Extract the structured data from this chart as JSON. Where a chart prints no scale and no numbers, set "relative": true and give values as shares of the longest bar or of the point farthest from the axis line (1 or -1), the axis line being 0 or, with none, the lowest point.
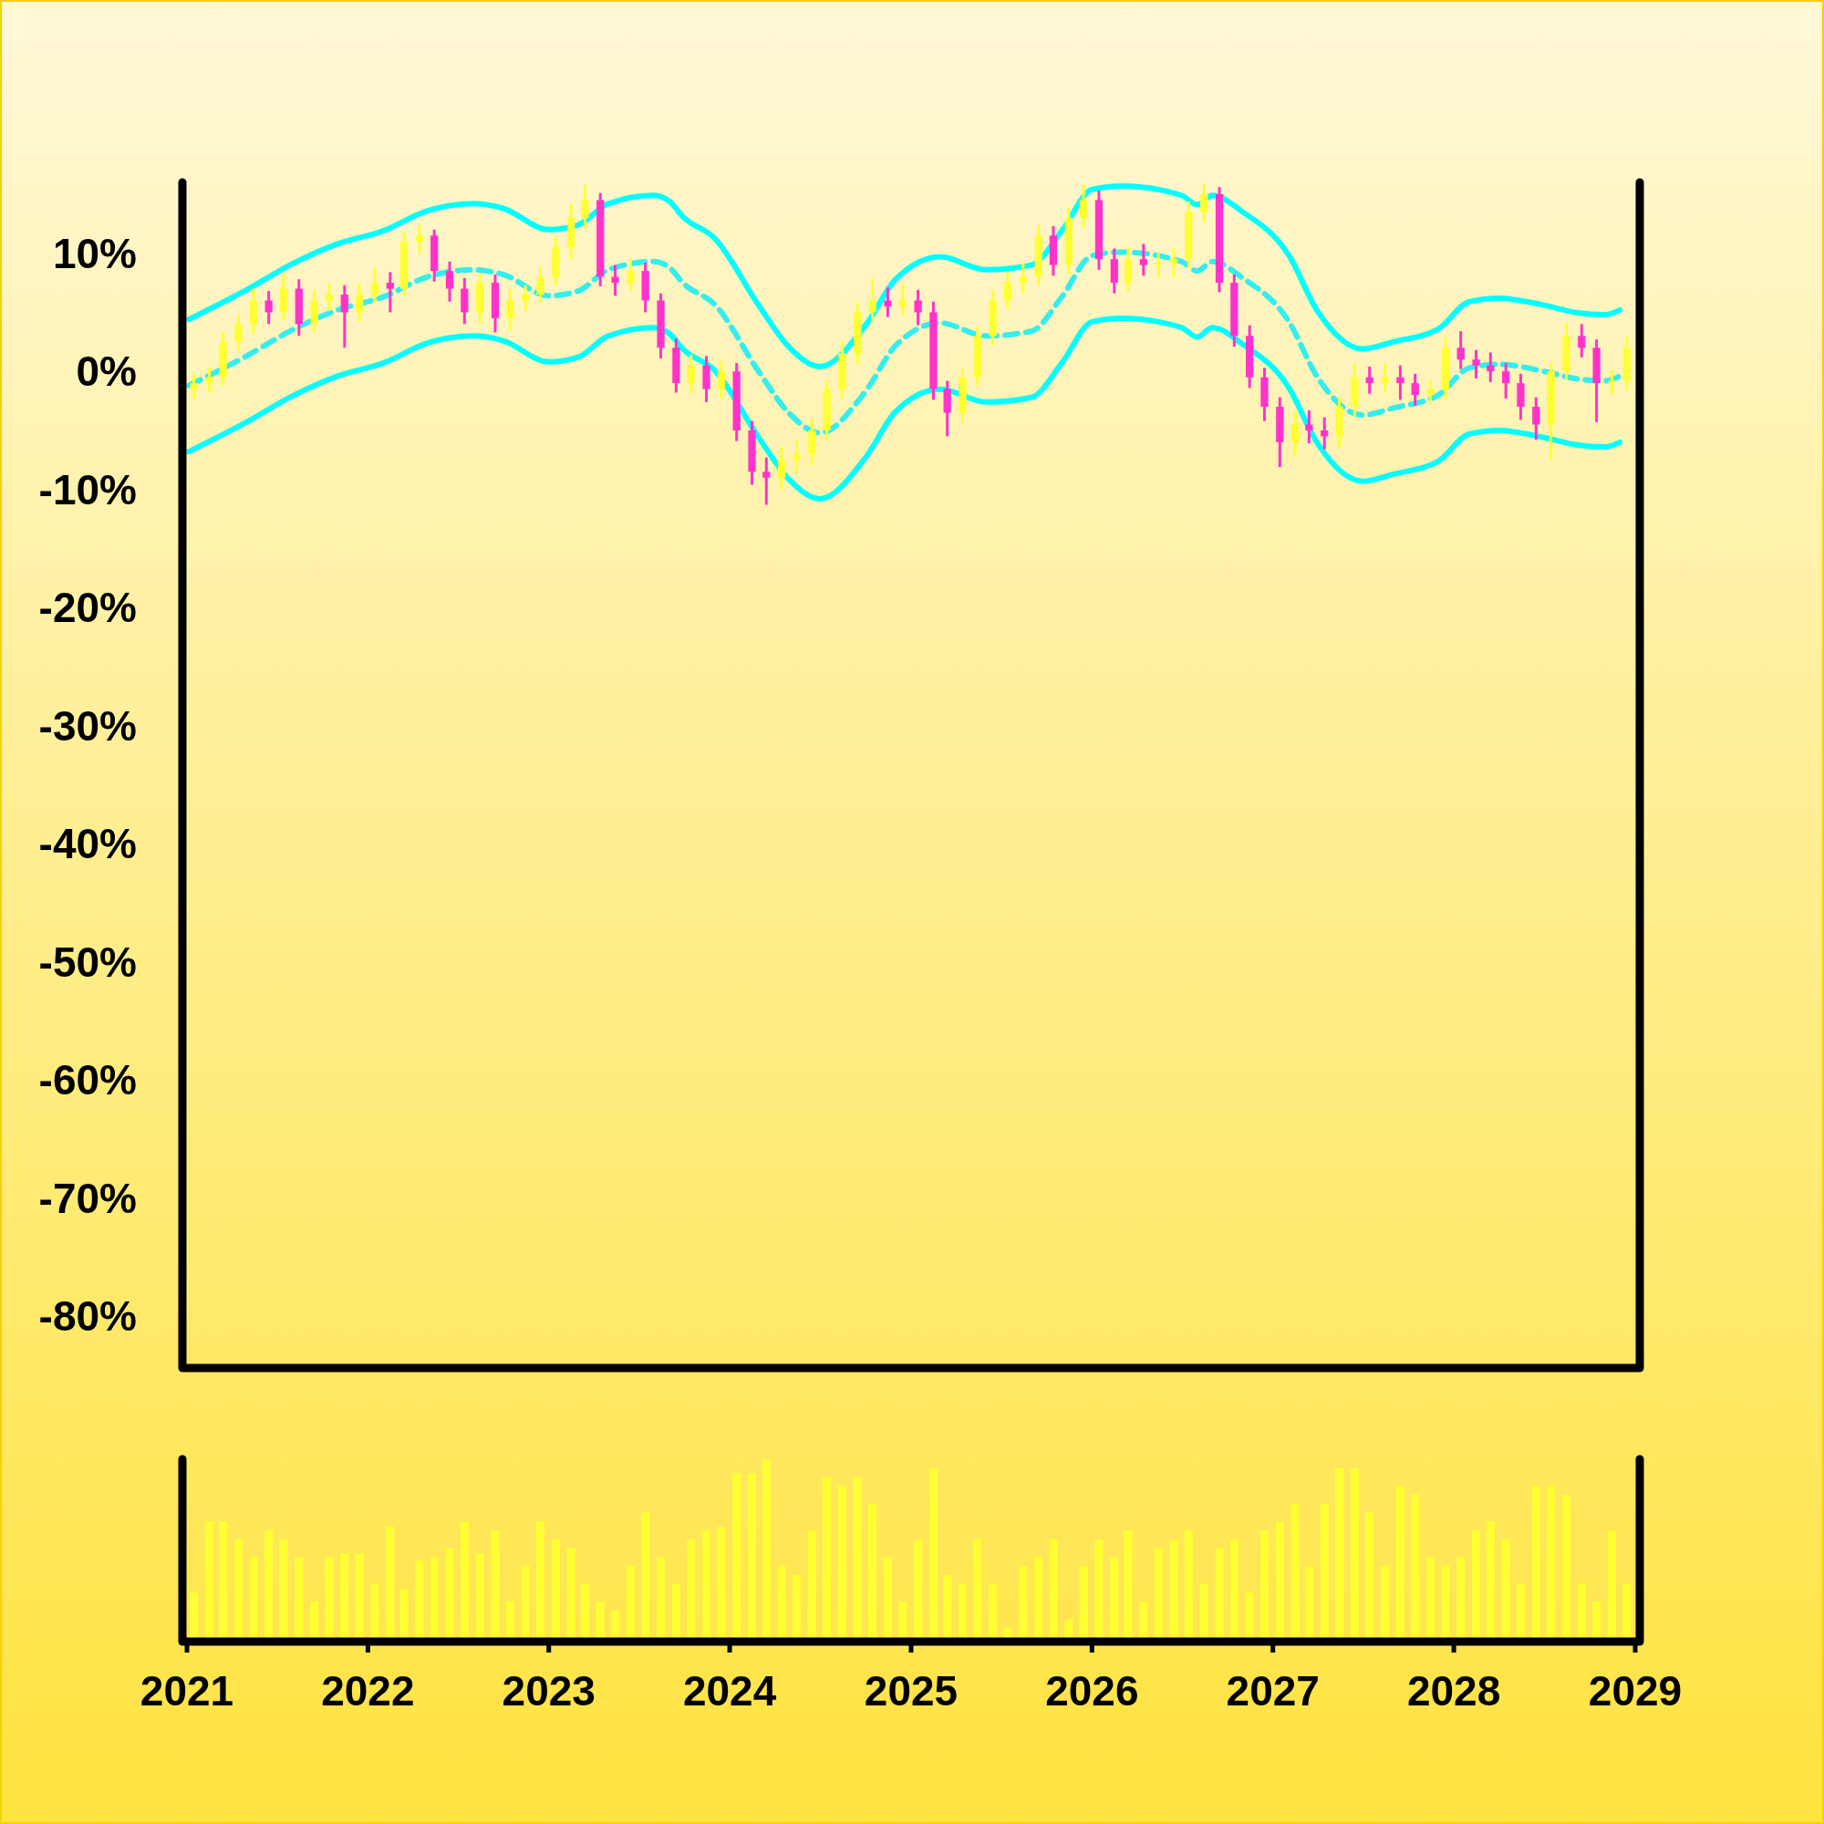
{
  "chart_data": [
    {
      "type": "candlestick",
      "xlim": [
        "2021",
        "2029"
      ],
      "ylim": [
        -84,
        16
      ],
      "tick_labels": "y",
      "yticks": [
        {
          "value": 10,
          "label": "10%"
        },
        {
          "value": 0,
          "label": "0%"
        },
        {
          "value": -10,
          "label": "-10%"
        },
        {
          "value": -20,
          "label": "-20%"
        },
        {
          "value": -30,
          "label": "-30%"
        },
        {
          "value": -40,
          "label": "-40%"
        },
        {
          "value": -50,
          "label": "-50%"
        },
        {
          "value": -60,
          "label": "-60%"
        },
        {
          "value": -70,
          "label": "-70%"
        },
        {
          "value": -80,
          "label": "-80%"
        }
      ],
      "x": [
        "2021-01-15",
        "2021-02-15",
        "2021-03-15",
        "2021-04-15",
        "2021-05-15",
        "2021-06-15",
        "2021-07-15",
        "2021-08-15",
        "2021-09-15",
        "2021-10-15",
        "2021-11-15",
        "2021-12-15",
        "2022-01-15",
        "2022-02-15",
        "2022-03-15",
        "2022-04-15",
        "2022-05-15",
        "2022-06-15",
        "2022-07-15",
        "2022-08-15",
        "2022-09-15",
        "2022-10-15",
        "2022-11-15",
        "2022-12-15",
        "2023-01-15",
        "2023-02-15",
        "2023-03-15",
        "2023-04-15",
        "2023-05-15",
        "2023-06-15",
        "2023-07-15",
        "2023-08-15",
        "2023-09-15",
        "2023-10-15",
        "2023-11-15",
        "2023-12-15",
        "2024-01-15",
        "2024-02-15",
        "2024-03-15",
        "2024-04-15",
        "2024-05-15",
        "2024-06-15",
        "2024-07-15",
        "2024-08-15",
        "2024-09-15",
        "2024-10-15",
        "2024-11-15",
        "2024-12-15",
        "2025-01-15",
        "2025-02-15",
        "2025-03-15",
        "2025-04-15",
        "2025-05-15",
        "2025-06-15",
        "2025-07-15",
        "2025-08-15",
        "2025-09-15",
        "2025-10-15",
        "2025-11-15",
        "2025-12-15",
        "2026-01-15",
        "2026-02-15",
        "2026-03-15",
        "2026-04-15",
        "2026-05-15",
        "2026-06-15",
        "2026-07-15",
        "2026-08-15",
        "2026-09-15",
        "2026-10-15",
        "2026-11-15",
        "2026-12-15",
        "2027-01-15",
        "2027-02-15",
        "2027-03-15",
        "2027-04-15",
        "2027-05-15",
        "2027-06-15",
        "2027-07-15",
        "2027-08-15",
        "2027-09-15",
        "2027-10-15",
        "2027-11-15",
        "2027-12-15",
        "2028-01-15",
        "2028-02-15",
        "2028-03-15",
        "2028-04-15",
        "2028-05-15",
        "2028-06-15",
        "2028-07-15",
        "2028-08-15",
        "2028-09-15",
        "2028-10-15",
        "2028-11-15",
        "2028-12-15"
      ],
      "ohlc": [
        [
          -1.5,
          -0.2,
          -2.3,
          -1
        ],
        [
          -1,
          0.3,
          -1.8,
          -0.5
        ],
        [
          -0.5,
          3.3,
          -1.2,
          2.5
        ],
        [
          2.5,
          4.8,
          1.7,
          4
        ],
        [
          4,
          7,
          3.2,
          6
        ],
        [
          6,
          6.8,
          4,
          5
        ],
        [
          5,
          8.3,
          4.3,
          7
        ],
        [
          7,
          7.8,
          3,
          4
        ],
        [
          4,
          6.9,
          3.3,
          6
        ],
        [
          6,
          7.5,
          5.1,
          6.5
        ],
        [
          6.5,
          7.3,
          2,
          5
        ],
        [
          5,
          7.4,
          4.2,
          6.5
        ],
        [
          6.5,
          8.8,
          5.8,
          7.5
        ],
        [
          7.5,
          8.4,
          5,
          7
        ],
        [
          7,
          11.8,
          6.4,
          11
        ],
        [
          11,
          12.4,
          10,
          11.5
        ],
        [
          11.5,
          12,
          7.6,
          8.5
        ],
        [
          8.5,
          9.3,
          5.9,
          7
        ],
        [
          7,
          7.9,
          4,
          5
        ],
        [
          5,
          8.3,
          4.1,
          7.5
        ],
        [
          7.5,
          8.2,
          3.3,
          4.5
        ],
        [
          4.5,
          7,
          3.5,
          6
        ],
        [
          6,
          7.3,
          5.1,
          6.5
        ],
        [
          6.5,
          8.9,
          5.8,
          8
        ],
        [
          8,
          11.4,
          7.3,
          10.5
        ],
        [
          10.5,
          14.2,
          9.5,
          13
        ],
        [
          13,
          15.8,
          12.1,
          14.5
        ],
        [
          14.5,
          15.1,
          7.2,
          8
        ],
        [
          8,
          9,
          6.4,
          7.5
        ],
        [
          7.5,
          9.6,
          6.8,
          8.5
        ],
        [
          8.5,
          9.2,
          5,
          6
        ],
        [
          6,
          6.6,
          1.1,
          2
        ],
        [
          2,
          2.8,
          -1.8,
          -1
        ],
        [
          -1,
          1.4,
          -1.9,
          0.5
        ],
        [
          0.5,
          1.3,
          -2.6,
          -1.5
        ],
        [
          -1.5,
          0.9,
          -2.3,
          0
        ],
        [
          0,
          0.7,
          -5.9,
          -5
        ],
        [
          -5,
          -4.2,
          -9.6,
          -8.5
        ],
        [
          -8.5,
          -7.3,
          -11.3,
          -9
        ],
        [
          -9,
          -6.4,
          -10,
          -7.5
        ],
        [
          -7.5,
          -5.8,
          -8.6,
          -7
        ],
        [
          -7,
          -4,
          -8,
          -5
        ],
        [
          -5,
          -0.8,
          -5.9,
          -1.5
        ],
        [
          -1.5,
          2.5,
          -2.3,
          1.5
        ],
        [
          1.5,
          5.8,
          0.6,
          5
        ],
        [
          5,
          7.9,
          4.2,
          6
        ],
        [
          6,
          7.1,
          4.6,
          5.5
        ],
        [
          5.5,
          7.4,
          4.7,
          6
        ],
        [
          6,
          6.9,
          3.9,
          5
        ],
        [
          5,
          5.9,
          -2.4,
          -1.5
        ],
        [
          -1.5,
          -0.8,
          -5.5,
          -3.5
        ],
        [
          -3.5,
          0.3,
          -4.4,
          -0.5
        ],
        [
          -0.5,
          3.8,
          -1.2,
          3
        ],
        [
          3,
          6.9,
          2.2,
          6
        ],
        [
          6,
          8.4,
          5.2,
          7.5
        ],
        [
          7.5,
          9.2,
          6.6,
          8
        ],
        [
          8,
          12.4,
          7.3,
          11.5
        ],
        [
          11.5,
          12.3,
          8.1,
          9
        ],
        [
          9,
          13.9,
          8.2,
          13
        ],
        [
          13,
          15.8,
          12.2,
          14.5
        ],
        [
          14.5,
          15.3,
          8.6,
          9.5
        ],
        [
          9.5,
          10.4,
          6.6,
          7.5
        ],
        [
          7.5,
          10.6,
          6.8,
          9.5
        ],
        [
          9.5,
          10.8,
          8.1,
          9
        ],
        [
          9,
          10,
          7.9,
          9.2
        ],
        [
          9.2,
          10.5,
          8,
          9.5
        ],
        [
          9.5,
          14.4,
          8.7,
          13.5
        ],
        [
          13.5,
          15.9,
          12.6,
          15
        ],
        [
          15,
          15.6,
          6.7,
          7.5
        ],
        [
          7.5,
          8.2,
          2.1,
          3
        ],
        [
          3,
          3.9,
          -1.4,
          -0.5
        ],
        [
          -0.5,
          0.3,
          -4.2,
          -3
        ],
        [
          -3,
          -2.2,
          -8.1,
          -6
        ],
        [
          -6,
          -3.4,
          -7.2,
          -4.5
        ],
        [
          -4.5,
          -3.3,
          -6.1,
          -5
        ],
        [
          -5,
          -3.9,
          -6.6,
          -5.5
        ],
        [
          -5.5,
          -2.2,
          -6.4,
          -3
        ],
        [
          -3,
          0.6,
          -3.8,
          -0.5
        ],
        [
          -0.5,
          0.4,
          -1.9,
          -1
        ],
        [
          -1,
          0.7,
          -1.8,
          -0.5
        ],
        [
          -0.5,
          0.5,
          -2.4,
          -1
        ],
        [
          -1,
          -0.2,
          -2.9,
          -2
        ],
        [
          -2,
          -0.7,
          -2.8,
          -1.5
        ],
        [
          -1.5,
          2.9,
          -2.3,
          2
        ],
        [
          2,
          3.4,
          0.2,
          1
        ],
        [
          1,
          1.8,
          -0.6,
          0.5
        ],
        [
          0.5,
          1.6,
          -0.9,
          0
        ],
        [
          0,
          0.7,
          -2.3,
          -1
        ],
        [
          -1,
          -0.2,
          -4.1,
          -3
        ],
        [
          -3,
          -2.2,
          -5.8,
          -4.5
        ],
        [
          -4.5,
          0.8,
          -7.5,
          0
        ],
        [
          0,
          4.1,
          -0.7,
          3
        ],
        [
          3,
          4,
          1.2,
          2
        ],
        [
          2,
          2.7,
          -4.3,
          -1
        ],
        [
          -1,
          0.1,
          -2,
          -0.8
        ],
        [
          -0.8,
          3,
          -1.6,
          2
        ]
      ],
      "colors": [
        "#ffff33",
        "#ffff33",
        "#ffff33",
        "#ffff33",
        "#ffff33",
        "#ff33cc",
        "#ffff33",
        "#ff33cc",
        "#ffff33",
        "#ffff33",
        "#ff33cc",
        "#ffff33",
        "#ffff33",
        "#ff33cc",
        "#ffff33",
        "#ffff33",
        "#ff33cc",
        "#ff33cc",
        "#ff33cc",
        "#ffff33",
        "#ff33cc",
        "#ffff33",
        "#ffff33",
        "#ffff33",
        "#ffff33",
        "#ffff33",
        "#ffff33",
        "#ff33cc",
        "#ff33cc",
        "#ffff33",
        "#ff33cc",
        "#ff33cc",
        "#ff33cc",
        "#ffff33",
        "#ff33cc",
        "#ffff33",
        "#ff33cc",
        "#ff33cc",
        "#ff33cc",
        "#ffff33",
        "#ffff33",
        "#ffff33",
        "#ffff33",
        "#ffff33",
        "#ffff33",
        "#ffff33",
        "#ff33cc",
        "#ffff33",
        "#ff33cc",
        "#ff33cc",
        "#ff33cc",
        "#ffff33",
        "#ffff33",
        "#ffff33",
        "#ffff33",
        "#ffff33",
        "#ffff33",
        "#ff33cc",
        "#ffff33",
        "#ffff33",
        "#ff33cc",
        "#ff33cc",
        "#ffff33",
        "#ff33cc",
        "#ffff33",
        "#ffff33",
        "#ffff33",
        "#ffff33",
        "#ff33cc",
        "#ff33cc",
        "#ff33cc",
        "#ff33cc",
        "#ff33cc",
        "#ffff33",
        "#ff33cc",
        "#ff33cc",
        "#ffff33",
        "#ffff33",
        "#ff33cc",
        "#ffff33",
        "#ff33cc",
        "#ff33cc",
        "#ffff33",
        "#ffff33",
        "#ff33cc",
        "#ff33cc",
        "#ff33cc",
        "#ff33cc",
        "#ff33cc",
        "#ff33cc",
        "#ffff33",
        "#ffff33",
        "#ff33cc",
        "#ff33cc",
        "#ffff33",
        "#ffff33"
      ],
      "series": [
        {
          "type": "line",
          "color": "#00ffff",
          "line_style": "solid",
          "x": [
            "2021-01-05",
            "2021-05-01",
            "2021-08-01",
            "2021-11-01",
            "2022-02-01",
            "2022-05-01",
            "2022-08-01",
            "2022-10-01",
            "2023-01-01",
            "2023-03-01",
            "2023-05-01",
            "2023-08-01",
            "2023-09-01",
            "2023-10-01",
            "2023-12-01",
            "2024-03-01",
            "2024-05-01",
            "2024-07-01",
            "2024-10-01",
            "2024-12-01",
            "2025-03-01",
            "2025-06-01",
            "2025-09-01",
            "2025-11-01",
            "2026-01-01",
            "2026-03-01",
            "2026-07-01",
            "2026-08-01",
            "2026-09-01",
            "2026-11-01",
            "2027-02-01",
            "2027-04-01",
            "2027-07-01",
            "2027-09-01",
            "2027-12-01",
            "2028-02-01",
            "2028-04-01",
            "2028-07-01",
            "2028-09-01",
            "2028-11-01",
            "2028-12-01"
          ],
          "values": [
            4.4,
            6.9,
            9.1,
            10.8,
            11.9,
            13.6,
            14.2,
            13.8,
            12,
            12.4,
            14.2,
            14.9,
            14.4,
            13,
            11.3,
            5.5,
            2,
            0.4,
            3.9,
            7.8,
            9.7,
            8.6,
            9,
            11.9,
            15.4,
            15.7,
            14.9,
            14.1,
            14.9,
            13.5,
            9.9,
            5.1,
            1.9,
            2.5,
            3.6,
            5.9,
            6.2,
            5.6,
            5,
            4.8,
            5.2
          ]
        },
        {
          "type": "line",
          "color": "#33eeee",
          "line_style": "dashed",
          "x": [
            "2021-01-05",
            "2021-05-01",
            "2021-08-01",
            "2021-11-01",
            "2022-02-01",
            "2022-05-01",
            "2022-08-01",
            "2022-10-01",
            "2023-01-01",
            "2023-03-01",
            "2023-05-01",
            "2023-08-01",
            "2023-09-01",
            "2023-10-01",
            "2023-12-01",
            "2024-03-01",
            "2024-05-01",
            "2024-07-01",
            "2024-10-01",
            "2024-12-01",
            "2025-03-01",
            "2025-06-01",
            "2025-09-01",
            "2025-11-01",
            "2026-01-01",
            "2026-03-01",
            "2026-07-01",
            "2026-08-01",
            "2026-09-01",
            "2026-11-01",
            "2027-02-01",
            "2027-04-01",
            "2027-07-01",
            "2027-09-01",
            "2027-12-01",
            "2028-02-01",
            "2028-04-01",
            "2028-07-01",
            "2028-09-01",
            "2028-11-01",
            "2028-12-01"
          ],
          "values": [
            -1.2,
            1.3,
            3.5,
            5.2,
            6.3,
            8,
            8.6,
            8.2,
            6.4,
            6.8,
            8.6,
            9.3,
            8.8,
            7.4,
            5.7,
            -0.1,
            -3.6,
            -5.2,
            -1.7,
            2.2,
            4.1,
            3,
            3.4,
            6.3,
            9.8,
            10.1,
            9.3,
            8.5,
            9.3,
            7.9,
            4.3,
            -0.5,
            -3.7,
            -3.1,
            -2,
            0.3,
            0.6,
            0,
            -0.6,
            -0.8,
            -0.4
          ]
        },
        {
          "type": "line",
          "color": "#00ffff",
          "line_style": "solid",
          "x": [
            "2021-01-05",
            "2021-05-01",
            "2021-08-01",
            "2021-11-01",
            "2022-02-01",
            "2022-05-01",
            "2022-08-01",
            "2022-10-01",
            "2023-01-01",
            "2023-03-01",
            "2023-05-01",
            "2023-08-01",
            "2023-09-01",
            "2023-10-01",
            "2023-12-01",
            "2024-03-01",
            "2024-05-01",
            "2024-07-01",
            "2024-10-01",
            "2024-12-01",
            "2025-03-01",
            "2025-06-01",
            "2025-09-01",
            "2025-11-01",
            "2026-01-01",
            "2026-03-01",
            "2026-07-01",
            "2026-08-01",
            "2026-09-01",
            "2026-11-01",
            "2027-02-01",
            "2027-04-01",
            "2027-07-01",
            "2027-09-01",
            "2027-12-01",
            "2028-02-01",
            "2028-04-01",
            "2028-07-01",
            "2028-09-01",
            "2028-11-01",
            "2028-12-01"
          ],
          "values": [
            -6.8,
            -4.3,
            -2.1,
            -0.4,
            0.7,
            2.4,
            3,
            2.6,
            0.8,
            1.2,
            3,
            3.7,
            3.2,
            1.8,
            0.1,
            -5.7,
            -9.2,
            -10.8,
            -7.3,
            -3.4,
            -1.5,
            -2.6,
            -2.2,
            0.7,
            4.2,
            4.5,
            3.7,
            2.9,
            3.7,
            2.3,
            -1.3,
            -6.1,
            -9.3,
            -8.7,
            -7.6,
            -5.3,
            -5,
            -5.6,
            -6.2,
            -6.4,
            -6
          ]
        }
      ]
    },
    {
      "type": "bar",
      "relative": true,
      "color": "#ffff33",
      "tick_labels": "x",
      "xlim": [
        "2021",
        "2029"
      ],
      "xticks": [
        "2021",
        "2022",
        "2023",
        "2024",
        "2025",
        "2026",
        "2027",
        "2028",
        "2029"
      ],
      "x": [
        "2021-01-15",
        "2021-02-15",
        "2021-03-15",
        "2021-04-15",
        "2021-05-15",
        "2021-06-15",
        "2021-07-15",
        "2021-08-15",
        "2021-09-15",
        "2021-10-15",
        "2021-11-15",
        "2021-12-15",
        "2022-01-15",
        "2022-02-15",
        "2022-03-15",
        "2022-04-15",
        "2022-05-15",
        "2022-06-15",
        "2022-07-15",
        "2022-08-15",
        "2022-09-15",
        "2022-10-15",
        "2022-11-15",
        "2022-12-15",
        "2023-01-15",
        "2023-02-15",
        "2023-03-15",
        "2023-04-15",
        "2023-05-15",
        "2023-06-15",
        "2023-07-15",
        "2023-08-15",
        "2023-09-15",
        "2023-10-15",
        "2023-11-15",
        "2023-12-15",
        "2024-01-15",
        "2024-02-15",
        "2024-03-15",
        "2024-04-15",
        "2024-05-15",
        "2024-06-15",
        "2024-07-15",
        "2024-08-15",
        "2024-09-15",
        "2024-10-15",
        "2024-11-15",
        "2024-12-15",
        "2025-01-15",
        "2025-02-15",
        "2025-03-15",
        "2025-04-15",
        "2025-05-15",
        "2025-06-15",
        "2025-07-15",
        "2025-08-15",
        "2025-09-15",
        "2025-10-15",
        "2025-11-15",
        "2025-12-15",
        "2026-01-15",
        "2026-02-15",
        "2026-03-15",
        "2026-04-15",
        "2026-05-15",
        "2026-06-15",
        "2026-07-15",
        "2026-08-15",
        "2026-09-15",
        "2026-10-15",
        "2026-11-15",
        "2026-12-15",
        "2027-01-15",
        "2027-02-15",
        "2027-03-15",
        "2027-04-15",
        "2027-05-15",
        "2027-06-15",
        "2027-07-15",
        "2027-08-15",
        "2027-09-15",
        "2027-10-15",
        "2027-11-15",
        "2027-12-15",
        "2028-01-15",
        "2028-02-15",
        "2028-03-15",
        "2028-04-15",
        "2028-05-15",
        "2028-06-15",
        "2028-07-15",
        "2028-08-15",
        "2028-09-15",
        "2028-10-15",
        "2028-11-15",
        "2028-12-15"
      ],
      "values": [
        0.25,
        0.65,
        0.65,
        0.55,
        0.45,
        0.6,
        0.55,
        0.45,
        0.2,
        0.45,
        0.47,
        0.47,
        0.3,
        0.62,
        0.27,
        0.43,
        0.45,
        0.5,
        0.65,
        0.47,
        0.6,
        0.2,
        0.4,
        0.65,
        0.55,
        0.5,
        0.3,
        0.2,
        0.15,
        0.4,
        0.7,
        0.45,
        0.3,
        0.55,
        0.6,
        0.62,
        0.92,
        0.92,
        1,
        0.4,
        0.35,
        0.6,
        0.9,
        0.85,
        0.9,
        0.75,
        0.45,
        0.2,
        0.55,
        0.95,
        0.35,
        0.3,
        0.55,
        0.3,
        0.05,
        0.4,
        0.45,
        0.55,
        0.1,
        0.4,
        0.55,
        0.45,
        0.6,
        0.2,
        0.5,
        0.55,
        0.6,
        0.3,
        0.5,
        0.55,
        0.25,
        0.6,
        0.65,
        0.75,
        0.4,
        0.75,
        0.95,
        0.95,
        0.7,
        0.4,
        0.85,
        0.8,
        0.45,
        0.4,
        0.45,
        0.6,
        0.65,
        0.55,
        0.3,
        0.85,
        0.85,
        0.8,
        0.3,
        0.2,
        0.6,
        0.3
      ]
    }
  ]
}
